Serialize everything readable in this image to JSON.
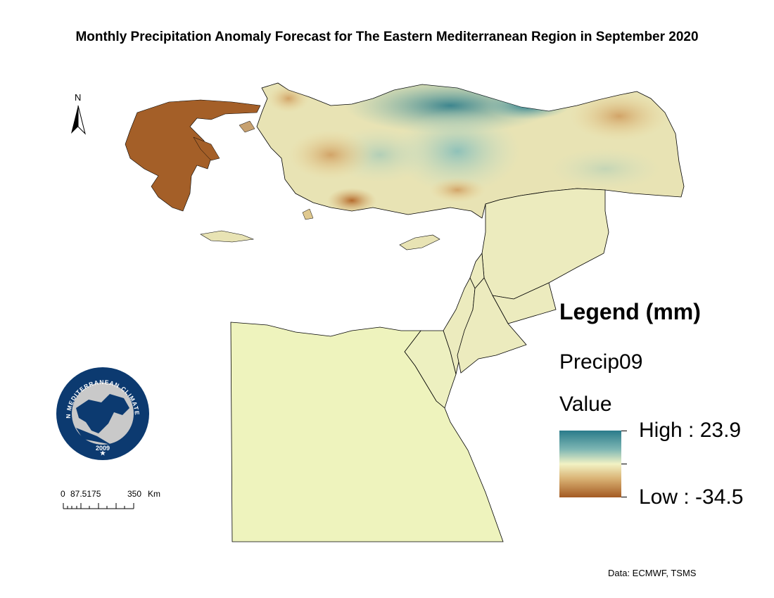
{
  "title": "Monthly Precipitation Anomaly Forecast for The Eastern Mediterranean Region in September 2020",
  "north_arrow": {
    "label": "N",
    "icon": "north-arrow-icon"
  },
  "logo": {
    "icon": "emcc-logo-icon",
    "text": "EASTERN MEDITERRANEAN CLIMATE CENTRE",
    "year": "2009",
    "colors": {
      "primary": "#0c3a70",
      "secondary": "#c9c9c9"
    }
  },
  "scale_bar": {
    "labels": [
      "0",
      "87.5175",
      "350"
    ],
    "unit": "Km"
  },
  "legend": {
    "title": "Legend (mm)",
    "layer": "Precip09",
    "field": "Value",
    "high_label": "High : 23.9",
    "low_label": "Low : -34.5",
    "high_value": 23.9,
    "low_value": -34.5,
    "colors": {
      "high": "#2a7b8a",
      "mid_high": "#7db6b3",
      "neutral": "#f2f2c4",
      "mid_low": "#d9b274",
      "low": "#a45a22"
    }
  },
  "credit": "Data: ECMWF, TSMS"
}
